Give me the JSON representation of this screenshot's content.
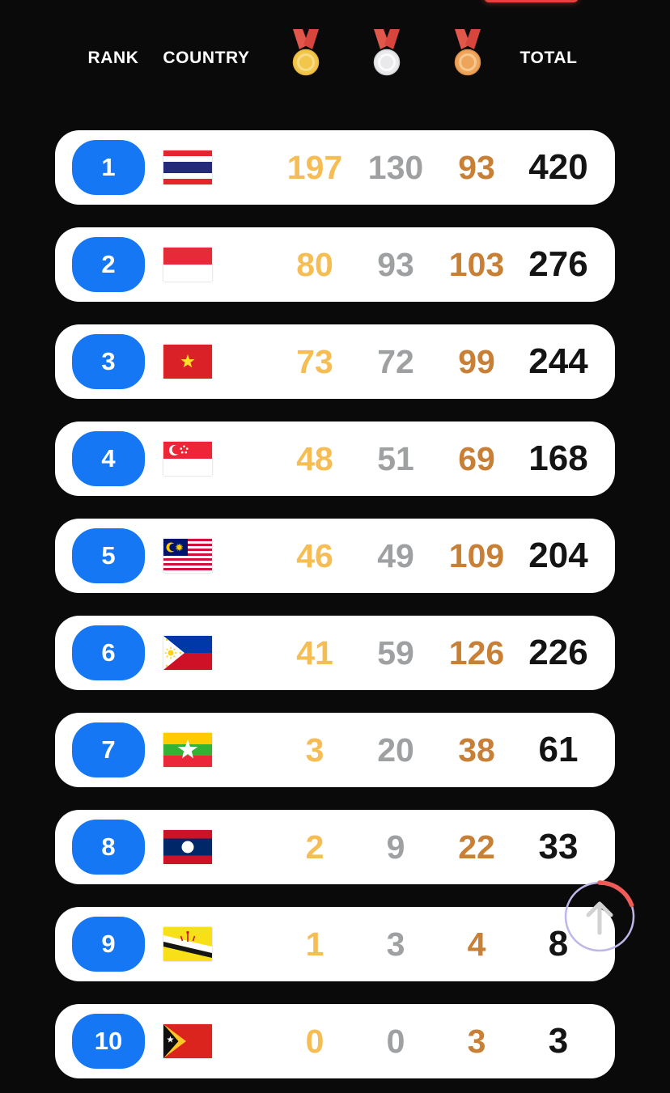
{
  "page": {
    "background": "#0a0a0b",
    "card_color": "#ffffff",
    "rank_badge_color": "#1577F3",
    "gold_text_color": "#F5BD53",
    "silver_text_color": "#9EA0A2",
    "bronze_text_color": "#C87F36",
    "total_text_color": "#141414",
    "top_fragment_color": "#e8413d"
  },
  "header": {
    "rank_label": "RANK",
    "country_label": "COUNTRY",
    "total_label": "TOTAL",
    "medals": [
      {
        "icon": "gold-medal-icon",
        "main": "#F2C64B",
        "edge": "#E9B63C",
        "inner": "#F6DC87",
        "ribbon_left": "#E2574C",
        "ribbon_right": "#D8453C"
      },
      {
        "icon": "silver-medal-icon",
        "main": "#E9E9EB",
        "edge": "#D4D4D8",
        "inner": "#FAFAFB",
        "ribbon_left": "#E2574C",
        "ribbon_right": "#D8453C"
      },
      {
        "icon": "bronze-medal-icon",
        "main": "#EFA45C",
        "edge": "#E18F45",
        "inner": "#F6C78F",
        "ribbon_left": "#E2574C",
        "ribbon_right": "#D8453C"
      }
    ]
  },
  "table": {
    "rows": [
      {
        "rank": "1",
        "country": "thailand",
        "gold": "197",
        "silver": "130",
        "bronze": "93",
        "total": "420"
      },
      {
        "rank": "2",
        "country": "indonesia",
        "gold": "80",
        "silver": "93",
        "bronze": "103",
        "total": "276"
      },
      {
        "rank": "3",
        "country": "vietnam",
        "gold": "73",
        "silver": "72",
        "bronze": "99",
        "total": "244"
      },
      {
        "rank": "4",
        "country": "singapore",
        "gold": "48",
        "silver": "51",
        "bronze": "69",
        "total": "168"
      },
      {
        "rank": "5",
        "country": "malaysia",
        "gold": "46",
        "silver": "49",
        "bronze": "109",
        "total": "204"
      },
      {
        "rank": "6",
        "country": "philippines",
        "gold": "41",
        "silver": "59",
        "bronze": "126",
        "total": "226"
      },
      {
        "rank": "7",
        "country": "myanmar",
        "gold": "3",
        "silver": "20",
        "bronze": "38",
        "total": "61"
      },
      {
        "rank": "8",
        "country": "laos",
        "gold": "2",
        "silver": "9",
        "bronze": "22",
        "total": "33"
      },
      {
        "rank": "9",
        "country": "brunei",
        "gold": "1",
        "silver": "3",
        "bronze": "4",
        "total": "8"
      },
      {
        "rank": "10",
        "country": "timor-leste",
        "gold": "0",
        "silver": "0",
        "bronze": "3",
        "total": "3"
      }
    ]
  },
  "scroll_top_button": {
    "icon": "up-arrow-icon",
    "ring_color": "#BDB7EA",
    "progress_arc_color": "#F15B57",
    "arrow_color": "#D2D2D2"
  }
}
